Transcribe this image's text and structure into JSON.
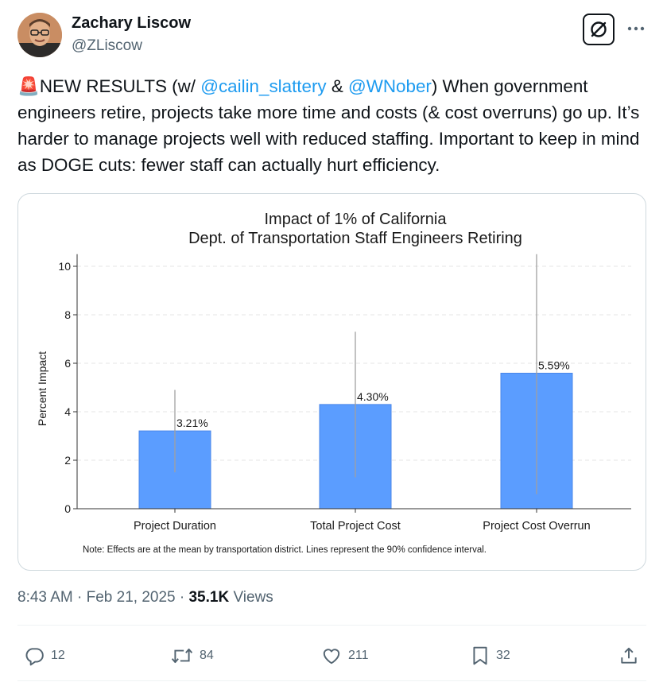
{
  "author": {
    "name": "Zachary Liscow",
    "handle": "@ZLiscow"
  },
  "tweet": {
    "emoji": "🚨",
    "prefix": "NEW RESULTS (w/ ",
    "mention1": "@cailin_slattery",
    "amp": " & ",
    "mention2": "@WNober",
    "body": ") When government engineers retire, projects take more time and costs (& cost overruns) go up. It’s harder to manage projects well with reduced staffing. Important to keep in mind as DOGE cuts: fewer staff can actually hurt efficiency."
  },
  "chart_data": {
    "type": "bar",
    "title": [
      "Impact of 1% of California",
      "Dept. of Transportation Staff Engineers Retiring"
    ],
    "ylabel": "Percent Impact",
    "xlabel": "",
    "ylim": [
      0,
      10.5
    ],
    "yticks": [
      0,
      2,
      4,
      6,
      8,
      10
    ],
    "grid": "horizontal dashed",
    "categories": [
      "Project Duration",
      "Total Project Cost",
      "Project Cost Overrun"
    ],
    "values": [
      3.21,
      4.3,
      5.59
    ],
    "value_labels": [
      "3.21%",
      "4.30%",
      "5.59%"
    ],
    "ci_low": [
      1.5,
      1.3,
      0.6
    ],
    "ci_high": [
      4.9,
      7.3,
      10.5
    ],
    "note": "Note: Effects are at the mean by transportation district. Lines represent the 90% confidence interval.",
    "bar_color": "#5b9dff",
    "ci_color": "#a0a0a0"
  },
  "meta": {
    "time": "8:43 AM",
    "sep1": " · ",
    "date": "Feb 21, 2025",
    "sep2": " · ",
    "views_count": "35.1K",
    "views_label": " Views"
  },
  "actions": {
    "replies": "12",
    "reposts": "84",
    "likes": "211",
    "bookmarks": "32"
  },
  "colors": {
    "accent": "#1d9bf0",
    "muted": "#536471",
    "text": "#0f1419"
  }
}
